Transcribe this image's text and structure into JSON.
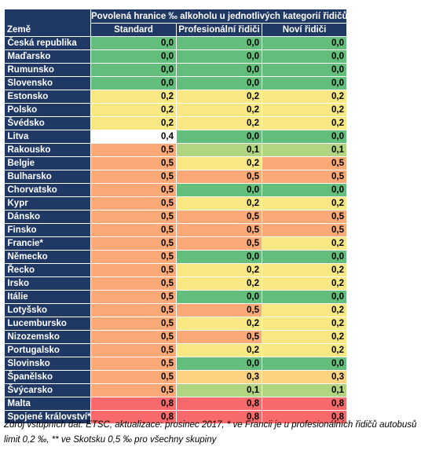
{
  "header": {
    "country": "Země",
    "group": "Povolená hranice ‰ alkoholu u jednotlivých kategorií řidičů",
    "columns": [
      "Standard",
      "Profesionální řidiči",
      "Noví řidiči"
    ]
  },
  "colors": {
    "header_bg": "#1f3864",
    "0,0": "#63be7b",
    "0,1": "#b1d580",
    "0,2": "#f8e883",
    "0,3": "#fcd380",
    "0,5": "#fbaa77",
    "0,8": "#f8696b"
  },
  "rows": [
    {
      "country": "Česká republika",
      "values": [
        "0,0",
        "0,0",
        "0,0"
      ]
    },
    {
      "country": "Maďarsko",
      "values": [
        "0,0",
        "0,0",
        "0,0"
      ]
    },
    {
      "country": "Rumunsko",
      "values": [
        "0,0",
        "0,0",
        "0,0"
      ]
    },
    {
      "country": "Slovensko",
      "values": [
        "0,0",
        "0,0",
        "0,0"
      ]
    },
    {
      "country": "Estonsko",
      "values": [
        "0,2",
        "0,2",
        "0,2"
      ]
    },
    {
      "country": "Polsko",
      "values": [
        "0,2",
        "0,2",
        "0,2"
      ]
    },
    {
      "country": "Švédsko",
      "values": [
        "0,2",
        "0,2",
        "0,2"
      ]
    },
    {
      "country": "Litva",
      "values": [
        "0,4",
        "0,0",
        "0,0"
      ]
    },
    {
      "country": "Rakousko",
      "values": [
        "0,5",
        "0,1",
        "0,1"
      ]
    },
    {
      "country": "Belgie",
      "values": [
        "0,5",
        "0,2",
        "0,5"
      ]
    },
    {
      "country": "Bulharsko",
      "values": [
        "0,5",
        "0,5",
        "0,5"
      ]
    },
    {
      "country": "Chorvatsko",
      "values": [
        "0,5",
        "0,0",
        "0,0"
      ]
    },
    {
      "country": "Kypr",
      "values": [
        "0,5",
        "0,2",
        "0,2"
      ]
    },
    {
      "country": "Dánsko",
      "values": [
        "0,5",
        "0,5",
        "0,5"
      ]
    },
    {
      "country": "Finsko",
      "values": [
        "0,5",
        "0,5",
        "0,5"
      ]
    },
    {
      "country": "Francie*",
      "values": [
        "0,5",
        "0,5",
        "0,2"
      ]
    },
    {
      "country": "Německo",
      "values": [
        "0,5",
        "0,0",
        "0,0"
      ]
    },
    {
      "country": "Řecko",
      "values": [
        "0,5",
        "0,2",
        "0,2"
      ]
    },
    {
      "country": "Irsko",
      "values": [
        "0,5",
        "0,2",
        "0,2"
      ]
    },
    {
      "country": "Itálie",
      "values": [
        "0,5",
        "0,0",
        "0,0"
      ]
    },
    {
      "country": "Lotyšsko",
      "values": [
        "0,5",
        "0,5",
        "0,2"
      ]
    },
    {
      "country": "Lucembursko",
      "values": [
        "0,5",
        "0,2",
        "0,2"
      ]
    },
    {
      "country": "Nizozemsko",
      "values": [
        "0,5",
        "0,5",
        "0,2"
      ]
    },
    {
      "country": "Portugalsko",
      "values": [
        "0,5",
        "0,2",
        "0,2"
      ]
    },
    {
      "country": "Slovinsko",
      "values": [
        "0,5",
        "0,0",
        "0,0"
      ]
    },
    {
      "country": "Španělsko",
      "values": [
        "0,5",
        "0,3",
        "0,3"
      ]
    },
    {
      "country": "Švýcarsko",
      "values": [
        "0,5",
        "0,1",
        "0,1"
      ]
    },
    {
      "country": "Malta",
      "values": [
        "0,8",
        "0,8",
        "0,8"
      ]
    },
    {
      "country": "Spojené království**",
      "values": [
        "0,8",
        "0,8",
        "0,8"
      ]
    }
  ],
  "note": "Zdroj vstupních dat: ETSC, aktualizace: prosinec 2017, * ve Francii je u profesionálních řidičů autobusů limit 0,2 ‰, ** ve Skotsku 0,5 ‰ pro všechny skupiny"
}
